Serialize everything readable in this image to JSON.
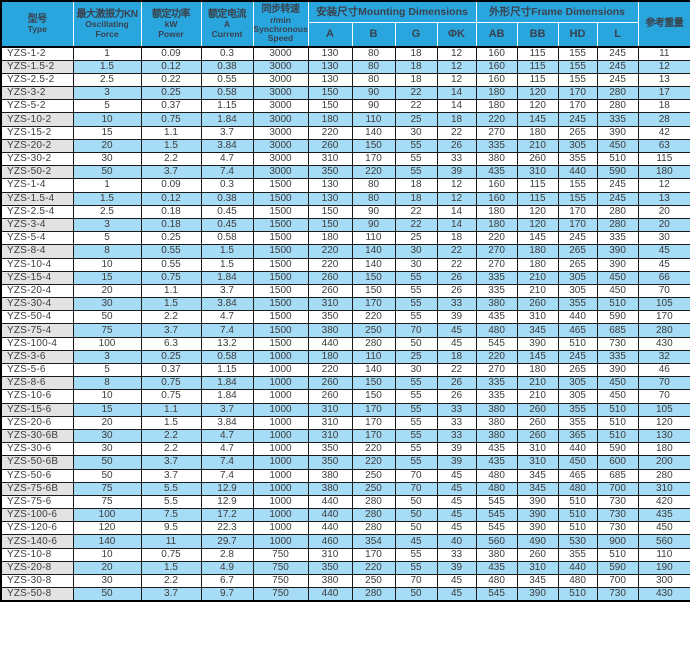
{
  "colors": {
    "header_bg": "#2aa6de",
    "header_text": "#39424e",
    "stripe_row_bg": "#a6dcf5",
    "stripe_model_bg": "#e3e3e3",
    "grid": "#000000",
    "body_text": "#3d3d3d"
  },
  "table": {
    "header": {
      "type": [
        "型号",
        "Type"
      ],
      "force": [
        "最大激振力KN",
        "Oscillating",
        "Force"
      ],
      "power": [
        "额定功率",
        "kW",
        "Power"
      ],
      "current": [
        "额定电流",
        "A",
        "Current"
      ],
      "speed": [
        "同步转速",
        "r/min",
        "Synchronous",
        "Speed"
      ],
      "mounting_group": "安装尺寸Mounting Dimensions",
      "mounting_subs": [
        "A",
        "B",
        "G",
        "ΦK"
      ],
      "frame_group": "外形尺寸Frame Dimensions",
      "frame_subs": [
        "AB",
        "BB",
        "HD",
        "L"
      ],
      "weight": "参考重量"
    },
    "rows": [
      [
        "YZS-1-2",
        "1",
        "0.09",
        "0.3",
        "3000",
        "130",
        "80",
        "18",
        "12",
        "160",
        "115",
        "155",
        "245",
        "11"
      ],
      [
        "YZS-1.5-2",
        "1.5",
        "0.12",
        "0.38",
        "3000",
        "130",
        "80",
        "18",
        "12",
        "160",
        "115",
        "155",
        "245",
        "12"
      ],
      [
        "YZS-2.5-2",
        "2.5",
        "0.22",
        "0.55",
        "3000",
        "130",
        "80",
        "18",
        "12",
        "160",
        "115",
        "155",
        "245",
        "13"
      ],
      [
        "YZS-3-2",
        "3",
        "0.25",
        "0.58",
        "3000",
        "150",
        "90",
        "22",
        "14",
        "180",
        "120",
        "170",
        "280",
        "17"
      ],
      [
        "YZS-5-2",
        "5",
        "0.37",
        "1.15",
        "3000",
        "150",
        "90",
        "22",
        "14",
        "180",
        "120",
        "170",
        "280",
        "18"
      ],
      [
        "YZS-10-2",
        "10",
        "0.75",
        "1.84",
        "3000",
        "180",
        "110",
        "25",
        "18",
        "220",
        "145",
        "245",
        "335",
        "28"
      ],
      [
        "YZS-15-2",
        "15",
        "1.1",
        "3.7",
        "3000",
        "220",
        "140",
        "30",
        "22",
        "270",
        "180",
        "265",
        "390",
        "42"
      ],
      [
        "YZS-20-2",
        "20",
        "1.5",
        "3.84",
        "3000",
        "260",
        "150",
        "55",
        "26",
        "335",
        "210",
        "305",
        "450",
        "63"
      ],
      [
        "YZS-30-2",
        "30",
        "2.2",
        "4.7",
        "3000",
        "310",
        "170",
        "55",
        "33",
        "380",
        "260",
        "355",
        "510",
        "115"
      ],
      [
        "YZS-50-2",
        "50",
        "3.7",
        "7.4",
        "3000",
        "350",
        "220",
        "55",
        "39",
        "435",
        "310",
        "440",
        "590",
        "180"
      ],
      [
        "YZS-1-4",
        "1",
        "0.09",
        "0.3",
        "1500",
        "130",
        "80",
        "18",
        "12",
        "160",
        "115",
        "155",
        "245",
        "12"
      ],
      [
        "YZS-1.5-4",
        "1.5",
        "0.12",
        "0.38",
        "1500",
        "130",
        "80",
        "18",
        "12",
        "160",
        "115",
        "155",
        "245",
        "13"
      ],
      [
        "YZS-2.5-4",
        "2.5",
        "0.18",
        "0.45",
        "1500",
        "150",
        "90",
        "22",
        "14",
        "180",
        "120",
        "170",
        "280",
        "20"
      ],
      [
        "YZS-3-4",
        "3",
        "0.18",
        "0.45",
        "1500",
        "150",
        "90",
        "22",
        "14",
        "180",
        "120",
        "170",
        "280",
        "20"
      ],
      [
        "YZS-5-4",
        "5",
        "0.25",
        "0.58",
        "1500",
        "180",
        "110",
        "25",
        "18",
        "220",
        "145",
        "245",
        "335",
        "30"
      ],
      [
        "YZS-8-4",
        "8",
        "0.55",
        "1.5",
        "1500",
        "220",
        "140",
        "30",
        "22",
        "270",
        "180",
        "265",
        "390",
        "45"
      ],
      [
        "YZS-10-4",
        "10",
        "0.55",
        "1.5",
        "1500",
        "220",
        "140",
        "30",
        "22",
        "270",
        "180",
        "265",
        "390",
        "45"
      ],
      [
        "YZS-15-4",
        "15",
        "0.75",
        "1.84",
        "1500",
        "260",
        "150",
        "55",
        "26",
        "335",
        "210",
        "305",
        "450",
        "66"
      ],
      [
        "YZS-20-4",
        "20",
        "1.1",
        "3.7",
        "1500",
        "260",
        "150",
        "55",
        "26",
        "335",
        "210",
        "305",
        "450",
        "70"
      ],
      [
        "YZS-30-4",
        "30",
        "1.5",
        "3.84",
        "1500",
        "310",
        "170",
        "55",
        "33",
        "380",
        "260",
        "355",
        "510",
        "105"
      ],
      [
        "YZS-50-4",
        "50",
        "2.2",
        "4.7",
        "1500",
        "350",
        "220",
        "55",
        "39",
        "435",
        "310",
        "440",
        "590",
        "170"
      ],
      [
        "YZS-75-4",
        "75",
        "3.7",
        "7.4",
        "1500",
        "380",
        "250",
        "70",
        "45",
        "480",
        "345",
        "465",
        "685",
        "280"
      ],
      [
        "YZS-100-4",
        "100",
        "6.3",
        "13.2",
        "1500",
        "440",
        "280",
        "50",
        "45",
        "545",
        "390",
        "510",
        "730",
        "430"
      ],
      [
        "YZS-3-6",
        "3",
        "0.25",
        "0.58",
        "1000",
        "180",
        "110",
        "25",
        "18",
        "220",
        "145",
        "245",
        "335",
        "32"
      ],
      [
        "YZS-5-6",
        "5",
        "0.37",
        "1.15",
        "1000",
        "220",
        "140",
        "30",
        "22",
        "270",
        "180",
        "265",
        "390",
        "46"
      ],
      [
        "YZS-8-6",
        "8",
        "0.75",
        "1.84",
        "1000",
        "260",
        "150",
        "55",
        "26",
        "335",
        "210",
        "305",
        "450",
        "70"
      ],
      [
        "YZS-10-6",
        "10",
        "0.75",
        "1.84",
        "1000",
        "260",
        "150",
        "55",
        "26",
        "335",
        "210",
        "305",
        "450",
        "70"
      ],
      [
        "YZS-15-6",
        "15",
        "1.1",
        "3.7",
        "1000",
        "310",
        "170",
        "55",
        "33",
        "380",
        "260",
        "355",
        "510",
        "105"
      ],
      [
        "YZS-20-6",
        "20",
        "1.5",
        "3.84",
        "1000",
        "310",
        "170",
        "55",
        "33",
        "380",
        "260",
        "355",
        "510",
        "120"
      ],
      [
        "YZS-30-6B",
        "30",
        "2.2",
        "4.7",
        "1000",
        "310",
        "170",
        "55",
        "33",
        "380",
        "260",
        "365",
        "510",
        "130"
      ],
      [
        "YZS-30-6",
        "30",
        "2.2",
        "4.7",
        "1000",
        "350",
        "220",
        "55",
        "39",
        "435",
        "310",
        "440",
        "590",
        "180"
      ],
      [
        "YZS-50-6B",
        "50",
        "3.7",
        "7.4",
        "1000",
        "350",
        "220",
        "55",
        "39",
        "435",
        "310",
        "450",
        "600",
        "200"
      ],
      [
        "YZS-50-6",
        "50",
        "3.7",
        "7.4",
        "1000",
        "380",
        "250",
        "70",
        "45",
        "480",
        "345",
        "465",
        "685",
        "280"
      ],
      [
        "YZS-75-6B",
        "75",
        "5.5",
        "12.9",
        "1000",
        "380",
        "250",
        "70",
        "45",
        "480",
        "345",
        "480",
        "700",
        "310"
      ],
      [
        "YZS-75-6",
        "75",
        "5.5",
        "12.9",
        "1000",
        "440",
        "280",
        "50",
        "45",
        "545",
        "390",
        "510",
        "730",
        "420"
      ],
      [
        "YZS-100-6",
        "100",
        "7.5",
        "17.2",
        "1000",
        "440",
        "280",
        "50",
        "45",
        "545",
        "390",
        "510",
        "730",
        "435"
      ],
      [
        "YZS-120-6",
        "120",
        "9.5",
        "22.3",
        "1000",
        "440",
        "280",
        "50",
        "45",
        "545",
        "390",
        "510",
        "730",
        "450"
      ],
      [
        "YZS-140-6",
        "140",
        "11",
        "29.7",
        "1000",
        "460",
        "354",
        "45",
        "40",
        "560",
        "490",
        "530",
        "900",
        "560"
      ],
      [
        "YZS-10-8",
        "10",
        "0.75",
        "2.8",
        "750",
        "310",
        "170",
        "55",
        "33",
        "380",
        "260",
        "355",
        "510",
        "110"
      ],
      [
        "YZS-20-8",
        "20",
        "1.5",
        "4.9",
        "750",
        "350",
        "220",
        "55",
        "39",
        "435",
        "310",
        "440",
        "590",
        "190"
      ],
      [
        "YZS-30-8",
        "30",
        "2.2",
        "6.7",
        "750",
        "380",
        "250",
        "70",
        "45",
        "480",
        "345",
        "480",
        "700",
        "300"
      ],
      [
        "YZS-50-8",
        "50",
        "3.7",
        "9.7",
        "750",
        "440",
        "280",
        "50",
        "45",
        "545",
        "390",
        "510",
        "730",
        "430"
      ]
    ]
  }
}
